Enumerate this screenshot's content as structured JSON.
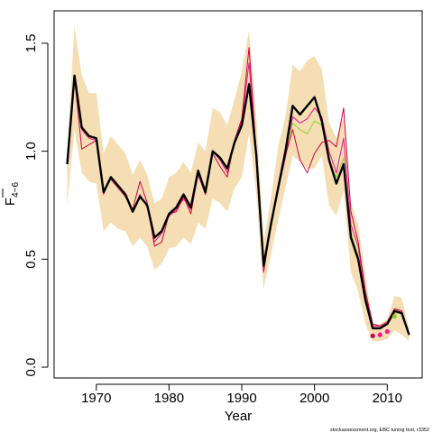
{
  "chart_data": {
    "type": "line",
    "xlabel": "Year",
    "ylabel": "F",
    "ylabel_subscript": "4−6",
    "footnote": "stockassessment.org, EBC tuning test, r3352",
    "xlim": [
      1964.2,
      2014.8
    ],
    "ylim": [
      -0.05,
      1.65
    ],
    "xticks": [
      1970,
      1980,
      1990,
      2000,
      2010
    ],
    "yticks": [
      0.0,
      0.5,
      1.0,
      1.5
    ],
    "ytick_labels": [
      "0.0",
      "0.5",
      "1.0",
      "1.5"
    ],
    "grid": false,
    "legend": "none",
    "x": [
      1966,
      1967,
      1968,
      1969,
      1970,
      1971,
      1972,
      1973,
      1974,
      1975,
      1976,
      1977,
      1978,
      1979,
      1980,
      1981,
      1982,
      1983,
      1984,
      1985,
      1986,
      1987,
      1988,
      1989,
      1990,
      1991,
      1992,
      1993,
      1994,
      1995,
      1996,
      1997,
      1998,
      1999,
      2000,
      2001,
      2002,
      2003,
      2004,
      2005,
      2006,
      2007,
      2008,
      2009,
      2010,
      2011,
      2012,
      2013
    ],
    "band": {
      "color": "#f5deb3",
      "lower": [
        0.75,
        1.1,
        0.9,
        0.86,
        0.85,
        0.63,
        0.67,
        0.64,
        0.63,
        0.56,
        0.6,
        0.56,
        0.45,
        0.48,
        0.55,
        0.56,
        0.6,
        0.57,
        0.67,
        0.64,
        0.78,
        0.76,
        0.72,
        0.83,
        0.88,
        1.08,
        0.8,
        0.36,
        0.52,
        0.68,
        0.83,
        0.98,
        0.95,
        0.92,
        0.92,
        0.98,
        0.75,
        0.7,
        0.82,
        0.44,
        0.35,
        0.2,
        0.12,
        0.12,
        0.13,
        0.17,
        0.15,
        0.12
      ],
      "upper": [
        1.0,
        1.58,
        1.35,
        1.27,
        1.27,
        0.99,
        1.07,
        1.03,
        0.99,
        0.89,
        0.96,
        0.89,
        0.76,
        0.78,
        0.88,
        0.9,
        0.95,
        0.9,
        1.04,
        1.0,
        1.2,
        1.18,
        1.12,
        1.24,
        1.37,
        1.56,
        1.16,
        0.58,
        0.78,
        1.02,
        1.16,
        1.4,
        1.37,
        1.42,
        1.44,
        1.38,
        1.13,
        1.06,
        1.16,
        0.76,
        0.66,
        0.42,
        0.2,
        0.2,
        0.22,
        0.33,
        0.32,
        0.18
      ]
    },
    "series": [
      {
        "color": "#000000",
        "width": 2.4,
        "values": [
          0.94,
          1.35,
          1.11,
          1.07,
          1.06,
          0.81,
          0.88,
          0.84,
          0.8,
          0.72,
          0.79,
          0.75,
          0.6,
          0.63,
          0.71,
          0.74,
          0.8,
          0.74,
          0.91,
          0.81,
          1.0,
          0.97,
          0.92,
          1.04,
          1.12,
          1.31,
          0.98,
          0.47,
          0.66,
          0.83,
          1.0,
          1.21,
          1.17,
          1.21,
          1.25,
          1.14,
          0.96,
          0.85,
          0.94,
          0.6,
          0.5,
          0.31,
          0.18,
          0.18,
          0.2,
          0.26,
          0.25,
          0.15
        ]
      },
      {
        "color": "#e8148f",
        "width": 1.0,
        "values": [
          0.94,
          1.34,
          1.1,
          1.06,
          1.05,
          0.8,
          0.88,
          0.83,
          0.79,
          0.72,
          0.8,
          0.74,
          0.58,
          0.62,
          0.7,
          0.73,
          0.78,
          0.73,
          0.89,
          0.8,
          1.0,
          0.96,
          0.9,
          1.04,
          1.14,
          1.41,
          0.97,
          0.46,
          0.65,
          0.82,
          0.97,
          1.16,
          1.13,
          1.15,
          1.2,
          1.16,
          1.0,
          0.9,
          1.06,
          0.66,
          0.56,
          0.33,
          0.19,
          0.19,
          0.21,
          0.27,
          0.26,
          0.15
        ]
      },
      {
        "color": "#cc0044",
        "width": 1.0,
        "values": [
          0.95,
          1.34,
          1.01,
          1.03,
          1.05,
          0.81,
          0.87,
          0.83,
          0.79,
          0.73,
          0.86,
          0.76,
          0.56,
          0.58,
          0.71,
          0.72,
          0.79,
          0.71,
          0.9,
          0.8,
          0.99,
          0.93,
          0.88,
          1.05,
          1.15,
          1.48,
          0.99,
          0.44,
          0.65,
          0.83,
          0.98,
          1.1,
          0.96,
          0.9,
          0.99,
          1.04,
          1.05,
          1.02,
          1.2,
          0.72,
          0.58,
          0.35,
          0.2,
          0.19,
          0.21,
          0.27,
          0.26,
          0.15
        ]
      },
      {
        "color": "#9acd32",
        "width": 1.0,
        "values": [
          0.94,
          1.35,
          1.11,
          1.07,
          1.06,
          0.81,
          0.88,
          0.84,
          0.8,
          0.72,
          0.79,
          0.75,
          0.6,
          0.63,
          0.71,
          0.74,
          0.8,
          0.74,
          0.91,
          0.81,
          1.0,
          0.97,
          0.92,
          1.04,
          1.12,
          1.32,
          0.98,
          0.47,
          0.66,
          0.83,
          1.0,
          1.13,
          1.1,
          1.08,
          1.14,
          1.12,
          0.95,
          0.88,
          0.97,
          0.62,
          0.52,
          0.32,
          0.18,
          0.18,
          0.2,
          0.25,
          0.25,
          0.15
        ]
      }
    ],
    "endpoints": [
      {
        "x": 2008,
        "y": 0.145,
        "color": "#cc0044"
      },
      {
        "x": 2009,
        "y": 0.15,
        "color": "#ff1493"
      },
      {
        "x": 2010,
        "y": 0.165,
        "color": "#ff1493"
      },
      {
        "x": 2011,
        "y": 0.235,
        "color": "#9acd32"
      }
    ]
  }
}
